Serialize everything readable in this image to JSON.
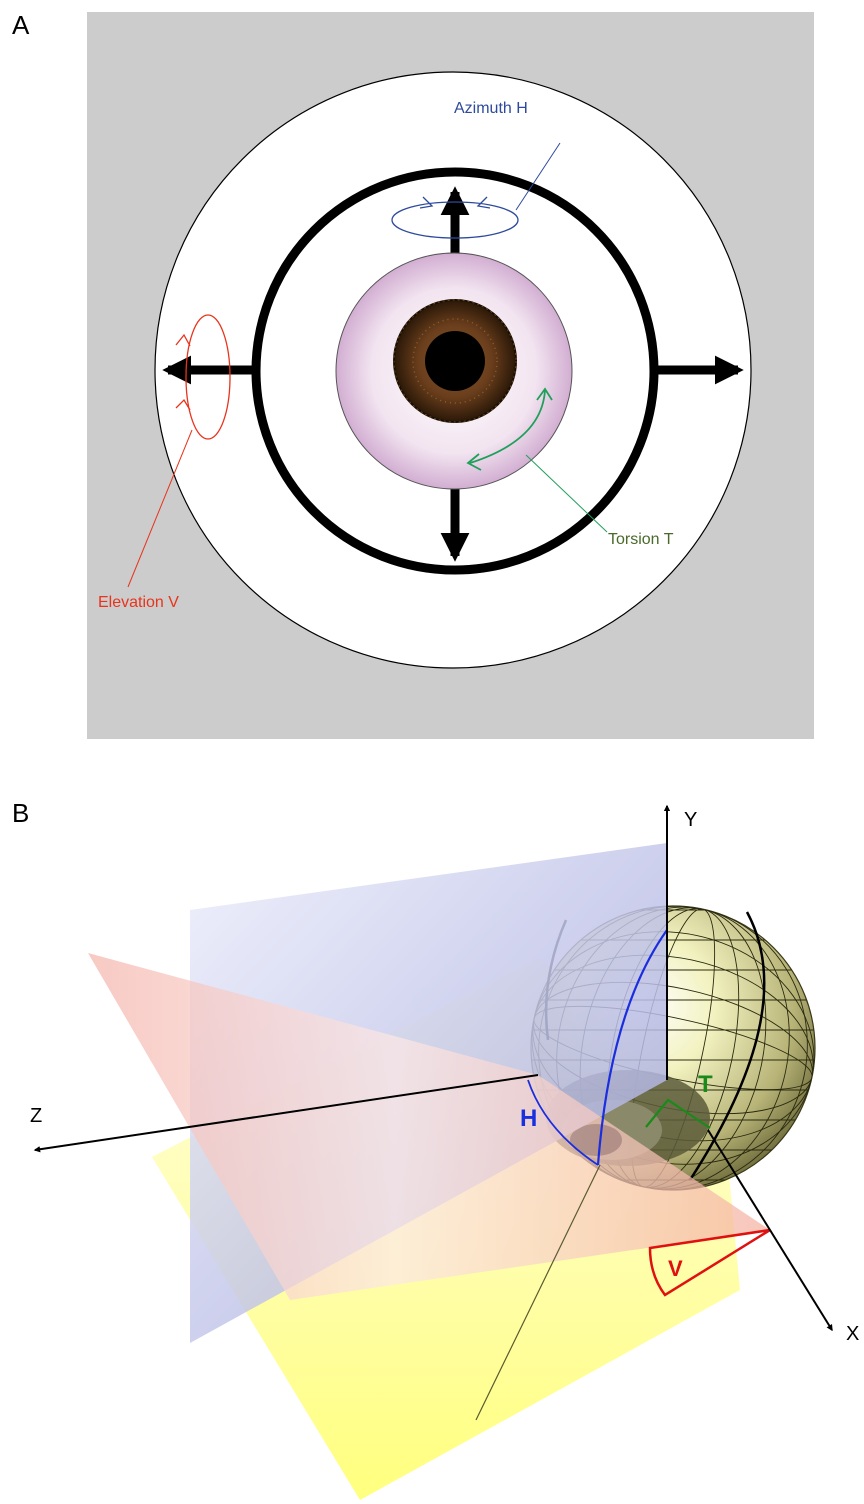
{
  "panel_a": {
    "panel_label": "A",
    "azimuth_label": "Azimuth H",
    "elevation_label": "Elevation V",
    "torsion_label": "Torsion T",
    "colors": {
      "background": "#cccccc",
      "azimuth": "#2e4a9c",
      "elevation": "#e8341c",
      "torsion_arrow": "#1fa05a",
      "torsion_text": "#4a6a2a"
    }
  },
  "panel_b": {
    "panel_label": "B",
    "axis_y": "Y",
    "axis_z": "Z",
    "axis_x": "X",
    "angle_h": "H",
    "angle_t": "T",
    "angle_v": "V",
    "colors": {
      "h": "#1a2ee0",
      "t": "#1a8a1a",
      "v": "#e01010",
      "vertical_plane": "#9aa0dc",
      "horizontal_plane": "#f4b8b0",
      "frontal_plane": "#ffff66",
      "globe": "#d8d896"
    }
  }
}
